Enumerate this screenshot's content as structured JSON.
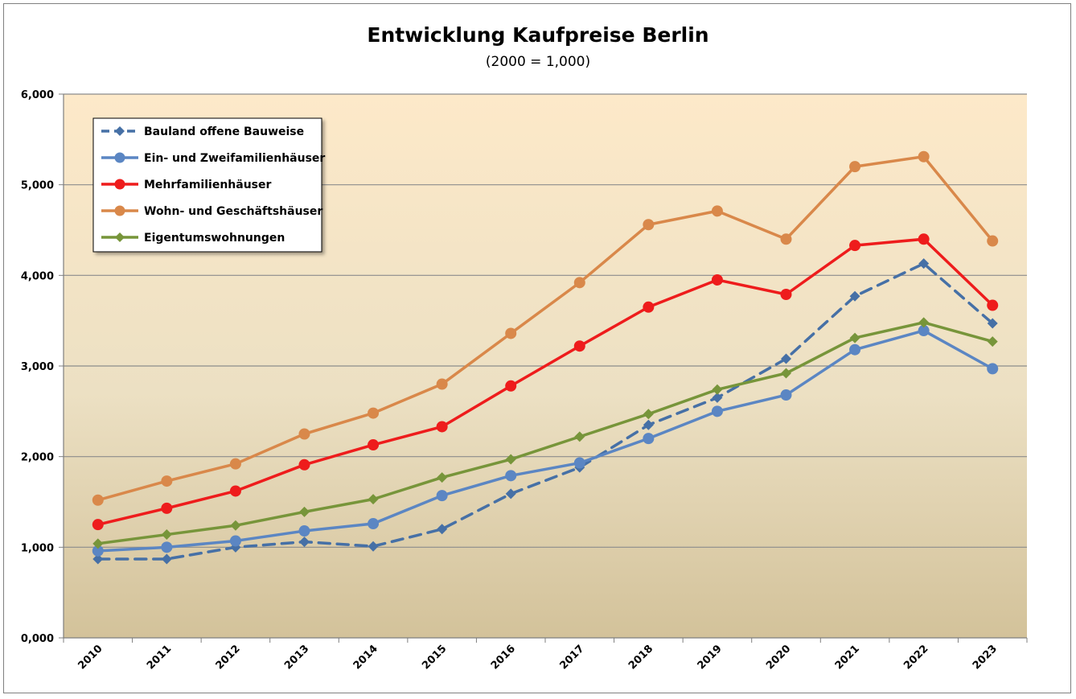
{
  "chart_data": {
    "type": "line",
    "title": "Entwicklung Kaufpreise Berlin",
    "subtitle": "(2000 = 1,000)",
    "xlabel": "",
    "ylabel": "",
    "categories": [
      "2010",
      "2011",
      "2012",
      "2013",
      "2014",
      "2015",
      "2016",
      "2017",
      "2018",
      "2019",
      "2020",
      "2021",
      "2022",
      "2023"
    ],
    "ylim": [
      0,
      6000
    ],
    "y_ticks": [
      0,
      1000,
      2000,
      3000,
      4000,
      5000,
      6000
    ],
    "y_tick_labels": [
      "0,000",
      "1,000",
      "2,000",
      "3,000",
      "4,000",
      "5,000",
      "6,000"
    ],
    "grid": true,
    "legend_position": "top-left",
    "series": [
      {
        "name": "Bauland offene Bauweise",
        "color": "#4670a6",
        "marker": "diamond",
        "dashed": true,
        "values": [
          870,
          870,
          1000,
          1060,
          1010,
          1200,
          1590,
          1880,
          2350,
          2650,
          3080,
          3770,
          4130,
          3470
        ]
      },
      {
        "name": "Ein- und Zweifamilienhäuser",
        "color": "#5b86c3",
        "marker": "circle",
        "dashed": false,
        "values": [
          960,
          1000,
          1070,
          1180,
          1260,
          1570,
          1790,
          1930,
          2200,
          2500,
          2680,
          3180,
          3390,
          2970
        ]
      },
      {
        "name": "Mehrfamilienhäuser",
        "color": "#ee1c1c",
        "marker": "circle",
        "dashed": false,
        "values": [
          1250,
          1430,
          1620,
          1910,
          2130,
          2330,
          2780,
          3220,
          3650,
          3950,
          3790,
          4330,
          4400,
          3670
        ]
      },
      {
        "name": "Wohn- und Geschäftshäuser",
        "color": "#d9884a",
        "marker": "circle",
        "dashed": false,
        "values": [
          1520,
          1730,
          1920,
          2250,
          2480,
          2800,
          3360,
          3920,
          4560,
          4710,
          4400,
          5200,
          5310,
          4380
        ]
      },
      {
        "name": "Eigentumswohnungen",
        "color": "#77953a",
        "marker": "diamond",
        "dashed": false,
        "values": [
          1040,
          1140,
          1240,
          1390,
          1530,
          1770,
          1970,
          2220,
          2470,
          2740,
          2920,
          3310,
          3480,
          3270
        ]
      }
    ]
  }
}
